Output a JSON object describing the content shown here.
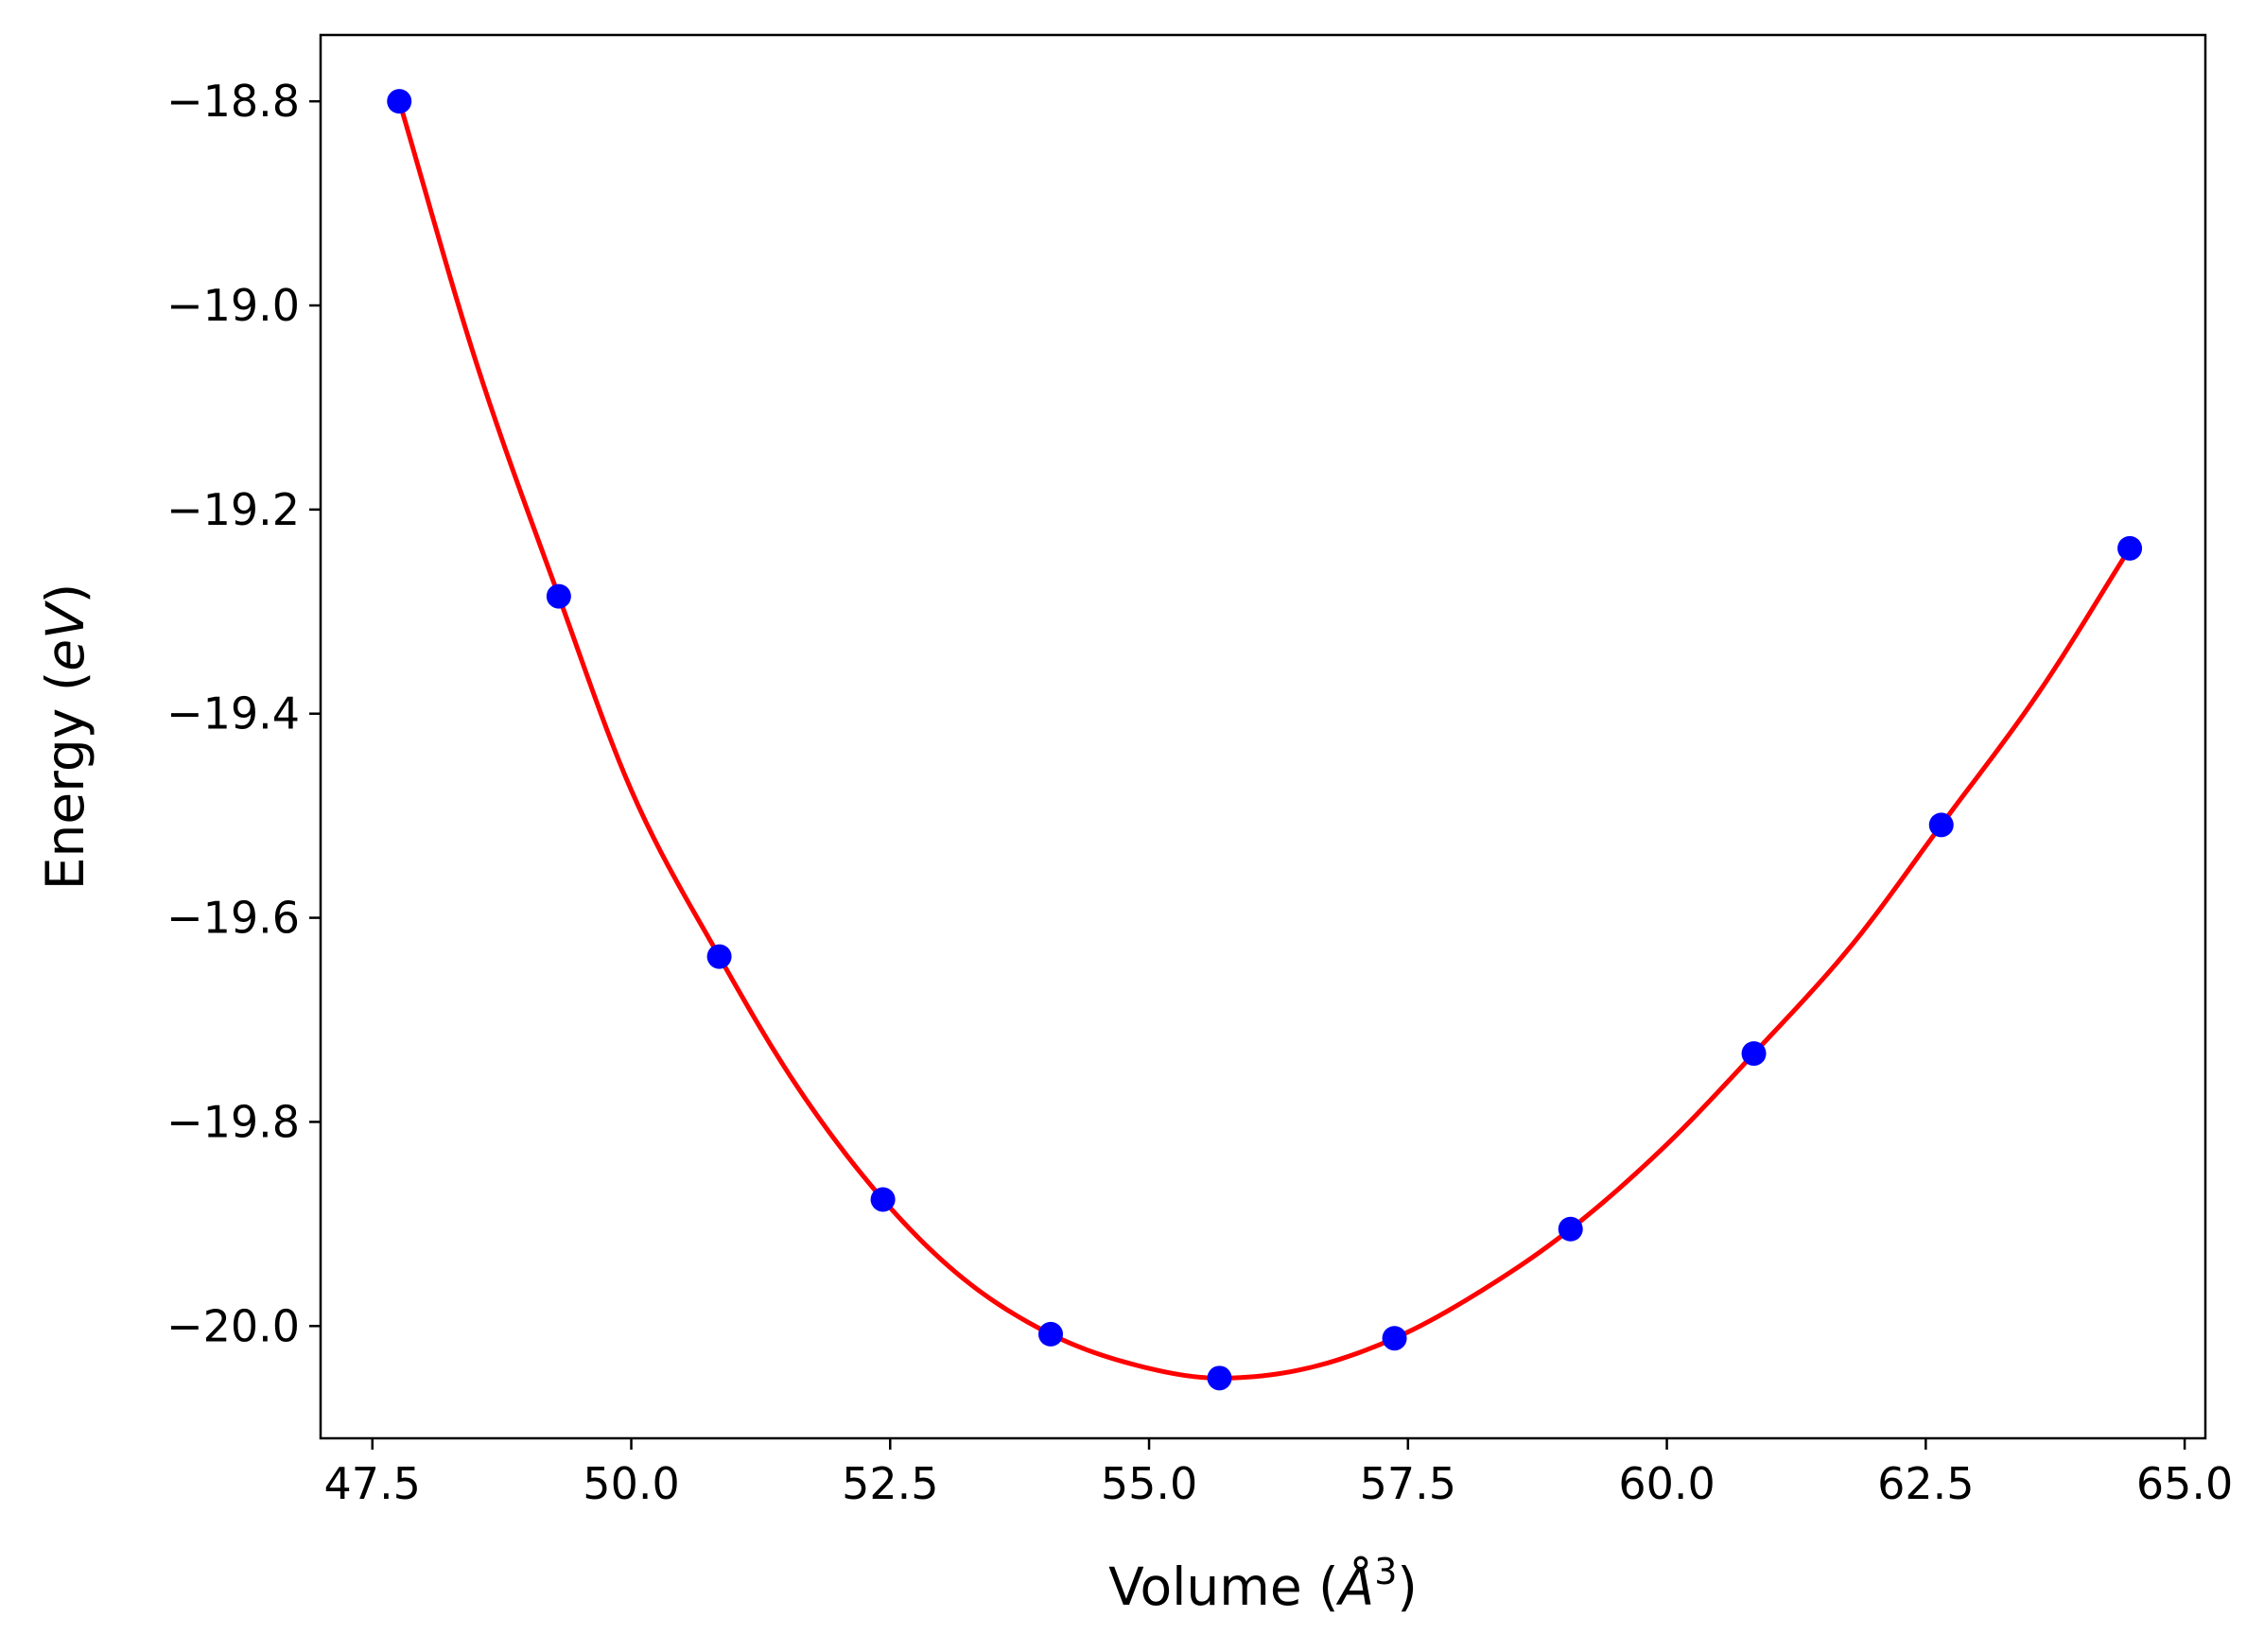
{
  "chart_data": {
    "type": "scatter",
    "xlabel": {
      "pre": "Volume (",
      "sym": "Å",
      "sup": "3",
      "post": ")"
    },
    "ylabel": {
      "pre": "Energy (",
      "unit": "eV",
      "post": ")"
    },
    "xlim": [
      47.0,
      65.2
    ],
    "ylim": [
      -20.11,
      -18.735
    ],
    "xticks": [
      47.5,
      50.0,
      52.5,
      55.0,
      57.5,
      60.0,
      62.5,
      65.0
    ],
    "xtick_labels": [
      "47.5",
      "50.0",
      "52.5",
      "55.0",
      "57.5",
      "60.0",
      "62.5",
      "65.0"
    ],
    "yticks": [
      -18.8,
      -19.0,
      -19.2,
      -19.4,
      -19.6,
      -19.8,
      -20.0
    ],
    "ytick_labels": [
      "−18.8",
      "−19.0",
      "−19.2",
      "−19.4",
      "−19.6",
      "−19.8",
      "−20.0"
    ],
    "grid": false,
    "series": [
      {
        "kind": "points",
        "color": "#0000ff",
        "x": [
          47.76,
          49.3,
          50.85,
          52.43,
          54.05,
          55.68,
          57.37,
          59.07,
          60.84,
          62.65,
          64.47
        ],
        "y": [
          -18.8,
          -19.285,
          -19.638,
          -19.876,
          -20.008,
          -20.051,
          -20.012,
          -19.905,
          -19.733,
          -19.509,
          -19.238
        ]
      },
      {
        "kind": "fit-curve",
        "color": "#ff0000",
        "x": [
          47.76,
          48.5,
          49.3,
          50.0,
          50.85,
          51.6,
          52.43,
          53.2,
          54.05,
          54.9,
          55.68,
          56.5,
          57.37,
          58.2,
          59.07,
          60.0,
          60.84,
          61.8,
          62.65,
          63.6,
          64.47
        ],
        "y": [
          -18.8,
          -19.055,
          -19.285,
          -19.475,
          -19.638,
          -19.765,
          -19.876,
          -19.953,
          -20.008,
          -20.039,
          -20.051,
          -20.042,
          -20.012,
          -19.966,
          -19.905,
          -19.822,
          -19.733,
          -19.625,
          -19.509,
          -19.378,
          -19.238
        ]
      }
    ]
  }
}
